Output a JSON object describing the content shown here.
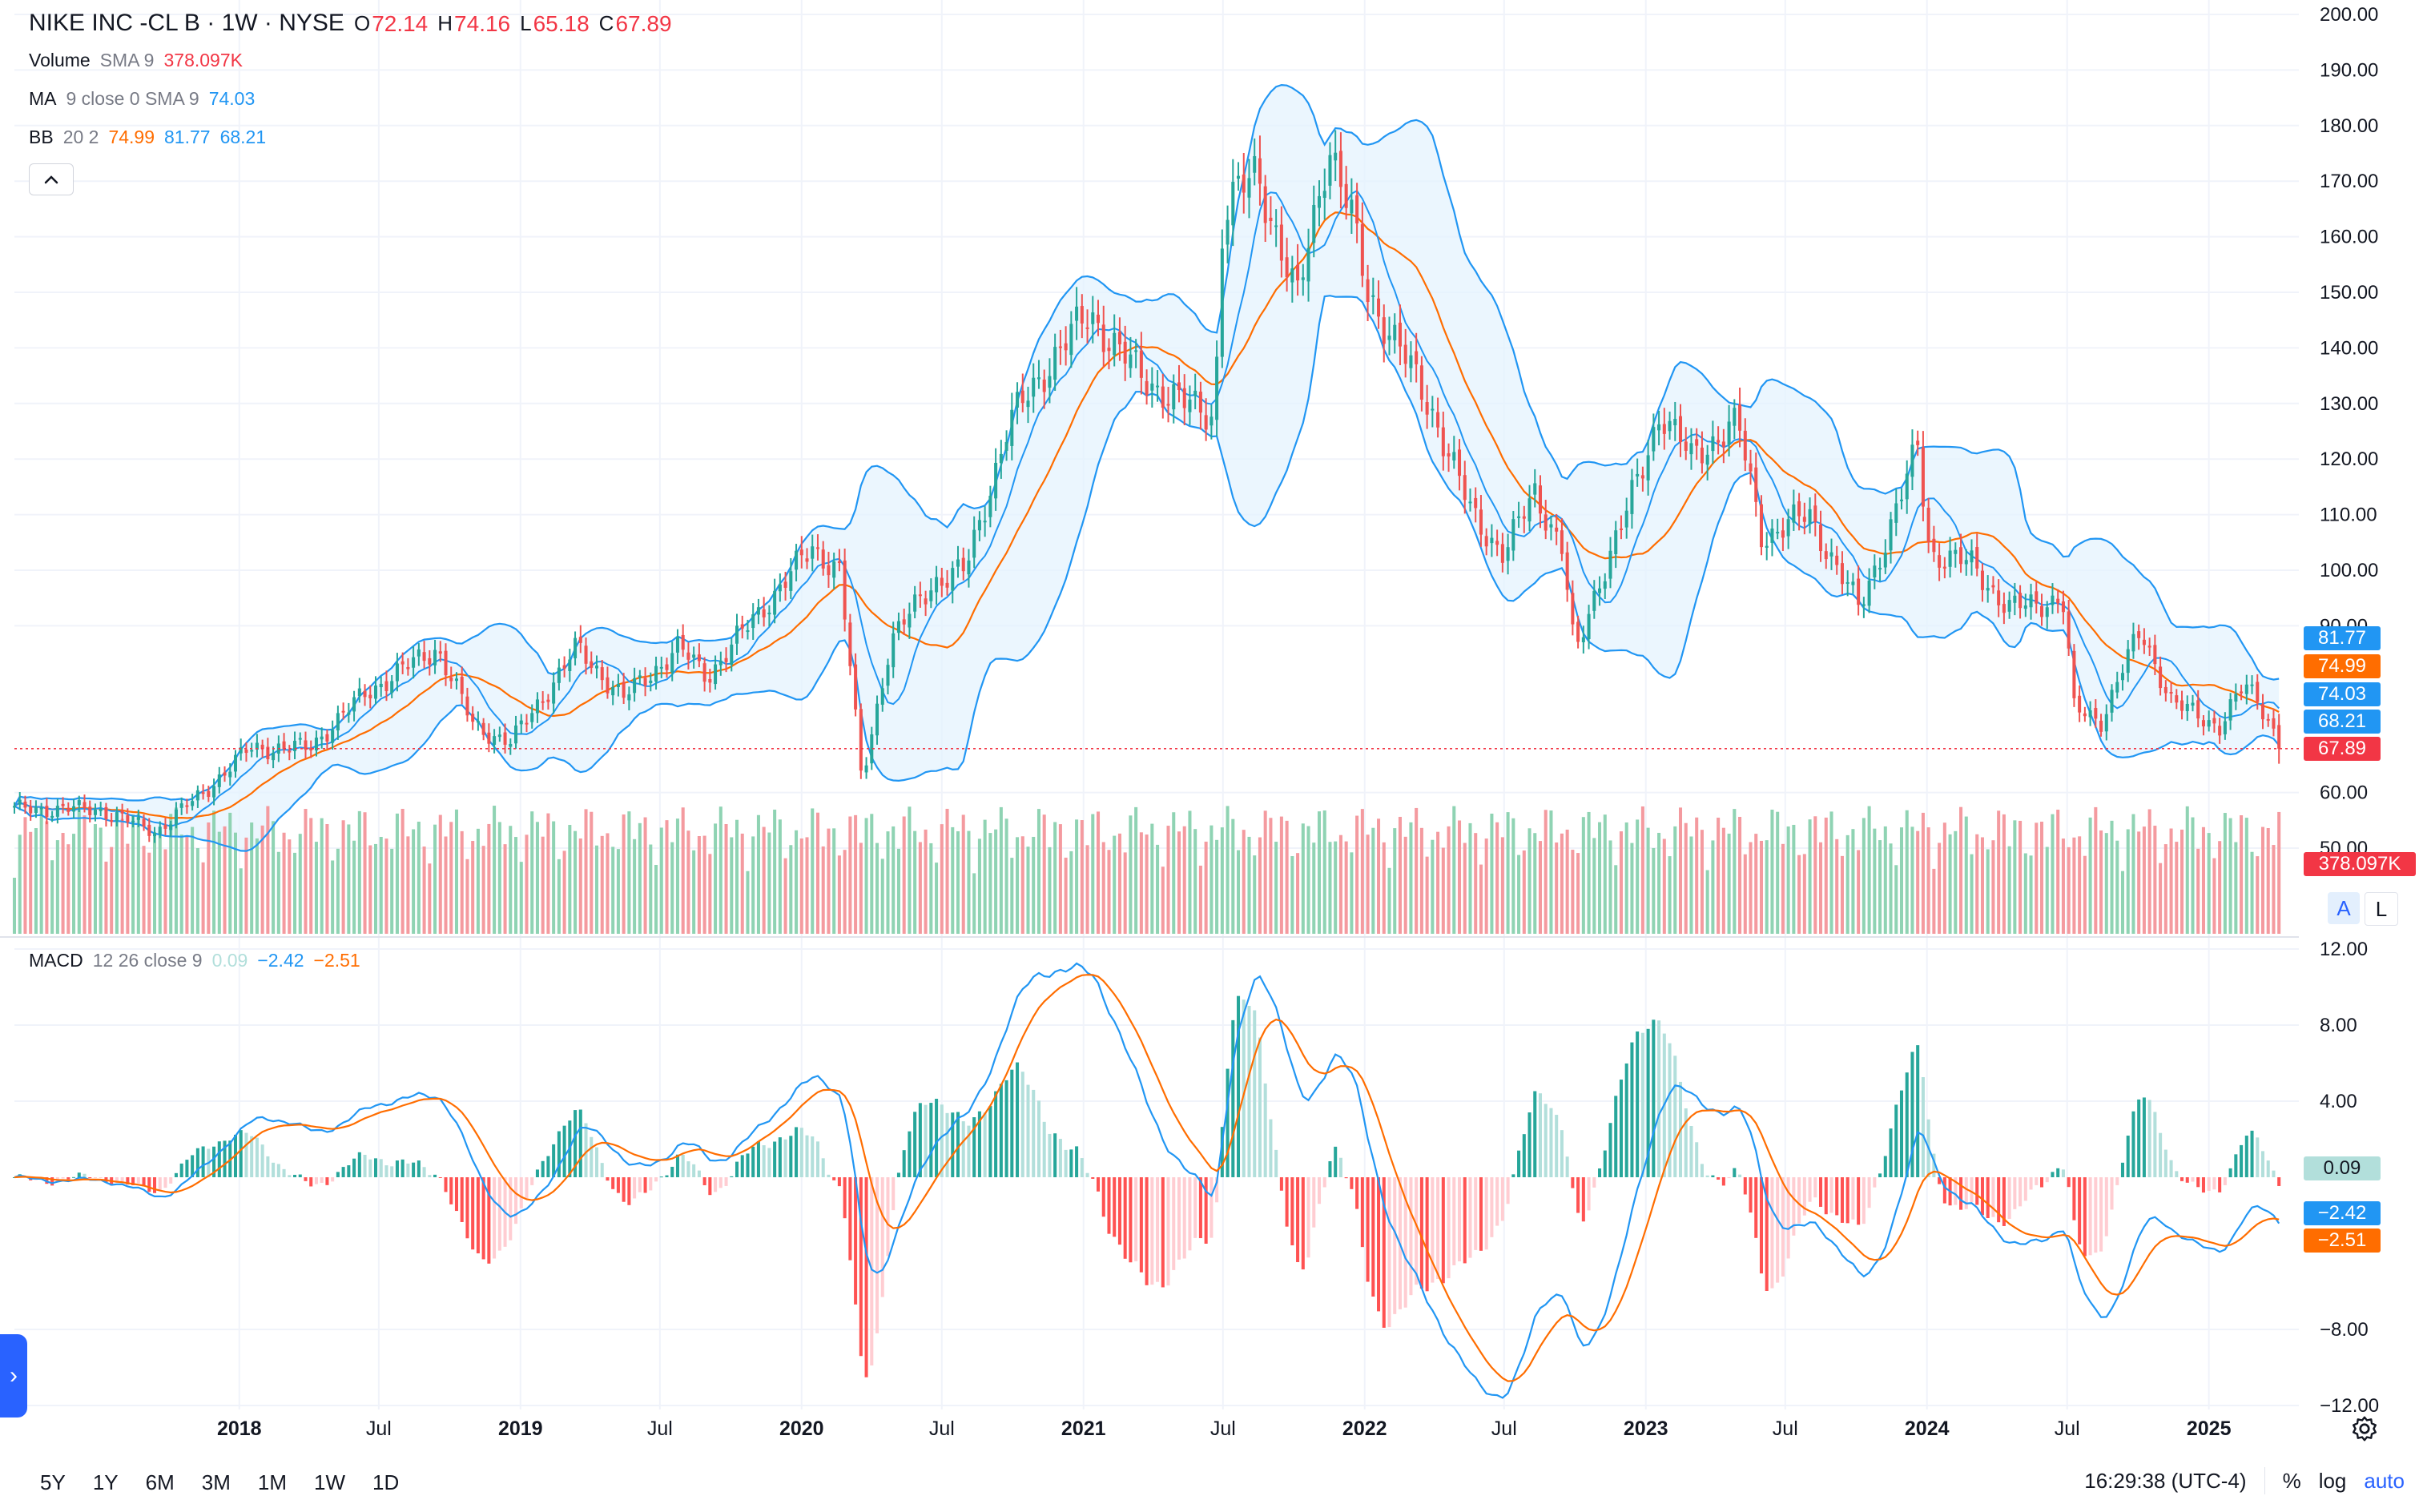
{
  "colors": {
    "up": "#26a69a",
    "down": "#ef5350",
    "vol_up": "#8fd3b3",
    "vol_down": "#f49a9f",
    "ma": "#2196f3",
    "bb_basis": "#ff6d00",
    "bb_band": "#2196f3",
    "bb_fill": "#e3f2fd",
    "macd_line": "#2196f3",
    "signal_line": "#ff6d00",
    "hist_pos_strong": "#26a69a",
    "hist_pos_weak": "#b2dfdb",
    "hist_neg_strong": "#ff5252",
    "hist_neg_weak": "#ffcdd2",
    "grid": "#f0f3fa",
    "last_price_line": "#f23645"
  },
  "legend": {
    "symbol": "NIKE INC -CL B · 1W · NYSE",
    "open_key": "O",
    "open": "72.14",
    "high_key": "H",
    "high": "74.16",
    "low_key": "L",
    "low": "65.18",
    "close_key": "C",
    "close": "67.89",
    "volume_title": "Volume",
    "volume_params": "SMA 9",
    "volume_value": "378.097K",
    "ma_title": "MA",
    "ma_params": "9 close 0 SMA 9",
    "ma_value": "74.03",
    "bb_title": "BB",
    "bb_params": "20 2",
    "bb_basis": "74.99",
    "bb_upper": "81.77",
    "bb_lower": "68.21",
    "macd_title": "MACD",
    "macd_params": "12 26 close 9",
    "macd_hist": "0.09",
    "macd_line": "−2.42",
    "macd_signal": "−2.51"
  },
  "price_tags": {
    "bb_upper": "81.77",
    "bb_basis": "74.99",
    "ma": "74.03",
    "bb_lower": "68.21",
    "last": "67.89",
    "volume": "378.097K",
    "macd_hist": "0.09",
    "macd": "−2.42",
    "signal": "−2.51"
  },
  "axis_buttons": {
    "auto": "A",
    "log": "L"
  },
  "range_buttons": [
    "5Y",
    "1Y",
    "6M",
    "3M",
    "1M",
    "1W",
    "1D"
  ],
  "bottom": {
    "time": "16:29:38 (UTC-4)",
    "percent": "%",
    "log": "log",
    "auto": "auto"
  },
  "chart_data": {
    "type": "candlestick",
    "title": "NIKE INC -CL B · 1W · NYSE",
    "x_tick_labels": [
      "2018",
      "Jul",
      "2019",
      "Jul",
      "2020",
      "Jul",
      "2021",
      "Jul",
      "2022",
      "Jul",
      "2023",
      "Jul",
      "2024",
      "Jul",
      "2025"
    ],
    "x_tick_dates": [
      "2018-01-01",
      "2018-07-01",
      "2019-01-01",
      "2019-07-01",
      "2020-01-01",
      "2020-07-01",
      "2021-01-01",
      "2021-07-01",
      "2022-01-01",
      "2022-07-01",
      "2023-01-01",
      "2023-07-01",
      "2024-01-01",
      "2024-07-01",
      "2025-01-01"
    ],
    "x_range": [
      "2017-03-15",
      "2025-04-07"
    ],
    "price_axis": {
      "labels": [
        "200.00",
        "190.00",
        "180.00",
        "170.00",
        "160.00",
        "150.00",
        "140.00",
        "130.00",
        "120.00",
        "110.00",
        "100.00",
        "90.00",
        "60.00",
        "50.00"
      ],
      "values": [
        200,
        190,
        180,
        170,
        160,
        150,
        140,
        130,
        120,
        110,
        100,
        90,
        60,
        50
      ],
      "ylim": [
        40,
        200
      ]
    },
    "macd_axis": {
      "labels": [
        "12.00",
        "8.00",
        "4.00",
        "−8.00",
        "−12.00"
      ],
      "values": [
        12,
        8,
        4,
        -8,
        -12
      ],
      "ylim": [
        -12,
        12
      ]
    },
    "last_price": 67.89,
    "price_anchors": [
      [
        "2017-03-15",
        57
      ],
      [
        "2017-07-01",
        57
      ],
      [
        "2017-09-15",
        53
      ],
      [
        "2017-11-15",
        60
      ],
      [
        "2018-01-15",
        68
      ],
      [
        "2018-04-01",
        68
      ],
      [
        "2018-06-15",
        78
      ],
      [
        "2018-09-15",
        86
      ],
      [
        "2018-11-01",
        72
      ],
      [
        "2018-12-20",
        69
      ],
      [
        "2019-03-15",
        86
      ],
      [
        "2019-05-15",
        77
      ],
      [
        "2019-07-25",
        86
      ],
      [
        "2019-09-01",
        81
      ],
      [
        "2019-11-10",
        93
      ],
      [
        "2020-01-15",
        104
      ],
      [
        "2020-02-20",
        100
      ],
      [
        "2020-03-19",
        62
      ],
      [
        "2020-04-25",
        87
      ],
      [
        "2020-06-20",
        98
      ],
      [
        "2020-08-01",
        100
      ],
      [
        "2020-09-25",
        126
      ],
      [
        "2020-12-01",
        140
      ],
      [
        "2021-01-10",
        146
      ],
      [
        "2021-03-15",
        135
      ],
      [
        "2021-05-10",
        130
      ],
      [
        "2021-06-20",
        128
      ],
      [
        "2021-07-01",
        164
      ],
      [
        "2021-08-15",
        172
      ],
      [
        "2021-10-05",
        148
      ],
      [
        "2021-11-15",
        177
      ],
      [
        "2021-12-15",
        163
      ],
      [
        "2022-01-05",
        150
      ],
      [
        "2022-02-15",
        140
      ],
      [
        "2022-04-01",
        128
      ],
      [
        "2022-05-20",
        110
      ],
      [
        "2022-07-01",
        103
      ],
      [
        "2022-08-10",
        114
      ],
      [
        "2022-09-15",
        104
      ],
      [
        "2022-10-01",
        84
      ],
      [
        "2022-11-01",
        98
      ],
      [
        "2022-12-25",
        117
      ],
      [
        "2023-01-20",
        129
      ],
      [
        "2023-03-01",
        120
      ],
      [
        "2023-04-20",
        126
      ],
      [
        "2023-05-01",
        126
      ],
      [
        "2023-06-01",
        106
      ],
      [
        "2023-08-01",
        110
      ],
      [
        "2023-10-05",
        93
      ],
      [
        "2023-11-15",
        108
      ],
      [
        "2023-12-20",
        122
      ],
      [
        "2024-01-05",
        103
      ],
      [
        "2024-03-01",
        101
      ],
      [
        "2024-04-15",
        93
      ],
      [
        "2024-06-25",
        95
      ],
      [
        "2024-07-10",
        75
      ],
      [
        "2024-08-15",
        73
      ],
      [
        "2024-09-10",
        82
      ],
      [
        "2024-10-05",
        89
      ],
      [
        "2024-11-15",
        76
      ],
      [
        "2025-01-15",
        72
      ],
      [
        "2025-02-15",
        79
      ],
      [
        "2025-03-05",
        77
      ],
      [
        "2025-04-07",
        68
      ]
    ],
    "volume": {
      "ylim_note": "volume histogram in lower band of price pane",
      "last": "378.097K"
    },
    "indicators": {
      "ma": {
        "name": "MA 9 close 0 SMA 9",
        "last": 74.03
      },
      "bollinger": {
        "name": "BB 20 2",
        "basis": 74.99,
        "upper": 81.77,
        "lower": 68.21
      },
      "macd": {
        "name": "MACD 12 26 close 9",
        "hist": 0.09,
        "macd": -2.42,
        "signal": -2.51
      }
    }
  }
}
